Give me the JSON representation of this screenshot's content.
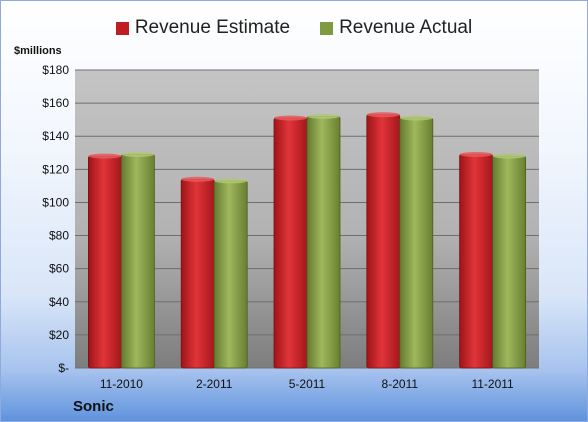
{
  "unit_label": "$millions",
  "company": "Sonic",
  "legend": [
    {
      "label": "Revenue Estimate",
      "color": "#c01d22"
    },
    {
      "label": "Revenue Actual",
      "color": "#7f9a3f"
    }
  ],
  "chart_data": {
    "type": "bar",
    "categories": [
      "11-2010",
      "2-2011",
      "5-2011",
      "8-2011",
      "11-2011"
    ],
    "series": [
      {
        "name": "Revenue Estimate",
        "values": [
          128,
          114,
          151,
          153,
          129
        ],
        "color": "#c01d22"
      },
      {
        "name": "Revenue Actual",
        "values": [
          129,
          113,
          152,
          151,
          128
        ],
        "color": "#7f9a3f"
      }
    ],
    "ylim": [
      0,
      180
    ],
    "yticks": [
      0,
      20,
      40,
      60,
      80,
      100,
      120,
      140,
      160,
      180
    ],
    "ytick_labels": [
      "$-",
      "$20",
      "$40",
      "$60",
      "$80",
      "$100",
      "$120",
      "$140",
      "$160",
      "$180"
    ],
    "grid": true,
    "legend_position": "top"
  }
}
